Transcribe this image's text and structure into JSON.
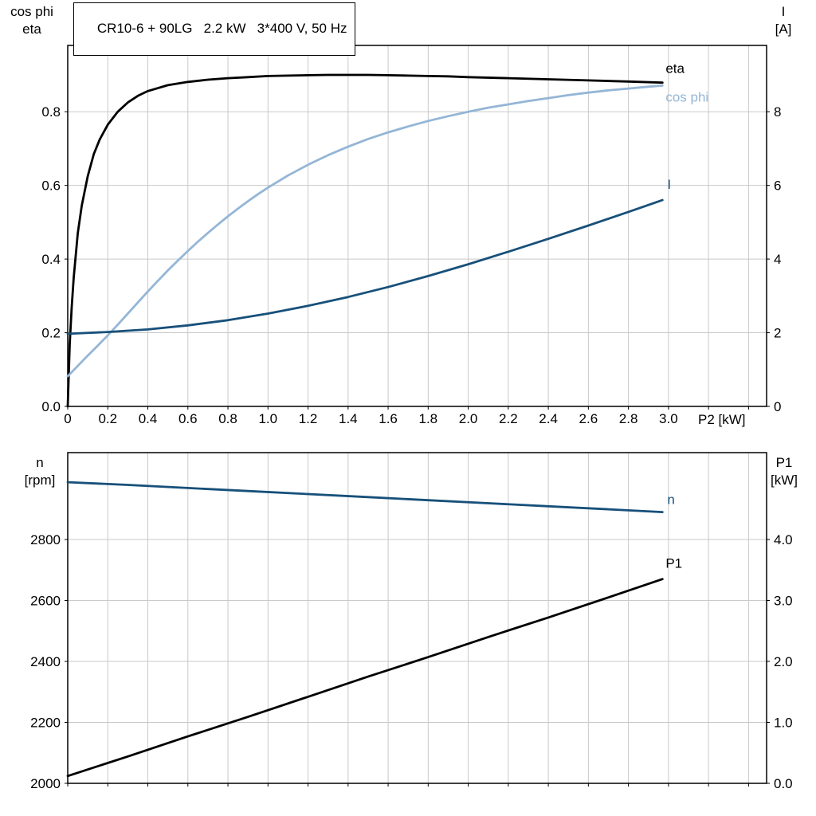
{
  "chart_title": "CR10-6 + 90LG   2.2 kW   3*400 V, 50 Hz",
  "colors": {
    "curve_black": "#000000",
    "curve_dark_blue": "#17507a",
    "curve_light_blue": "#94b6d6",
    "grid": "#c9c9c9",
    "frame": "#000000",
    "text": "#000000"
  },
  "axis_labels": {
    "top_left_line1": "cos phi",
    "top_left_line2": "eta",
    "top_right_line1": "I",
    "top_right_line2": "[A]",
    "x_label": "P2 [kW]",
    "bottom_left_line1": "n",
    "bottom_left_line2": "[rpm]",
    "bottom_right_line1": "P1",
    "bottom_right_line2": "[kW]"
  },
  "chart_data": [
    {
      "id": "motor-efficiency",
      "type": "line",
      "x_axis": {
        "label": "P2 [kW]",
        "min": 0,
        "max": 3.49,
        "grid_step": 0.2,
        "tick_step": 0.2
      },
      "x_tick_labels": [
        "0",
        "0.2",
        "0.4",
        "0.6",
        "0.8",
        "1.0",
        "1.2",
        "1.4",
        "1.6",
        "1.8",
        "2.0",
        "2.2",
        "2.4",
        "2.6",
        "2.8",
        "3.0"
      ],
      "y_left": {
        "title": "cos phi / eta",
        "min": 0,
        "max": 0.98,
        "ticks": [
          0,
          0.2,
          0.4,
          0.6,
          0.8
        ],
        "tick_labels": [
          "0.0",
          "0.2",
          "0.4",
          "0.6",
          "0.8"
        ]
      },
      "y_right": {
        "title": "I [A]",
        "min": 0,
        "max": 9.8,
        "ticks": [
          0,
          2,
          4,
          6,
          8
        ],
        "tick_labels": [
          "0",
          "2",
          "4",
          "6",
          "8"
        ]
      },
      "series": [
        {
          "name": "eta",
          "axis": "left",
          "color": "curve_black",
          "label_offset": [
            4,
            -12
          ],
          "points": [
            [
              0,
              0
            ],
            [
              0.01,
              0.17
            ],
            [
              0.02,
              0.27
            ],
            [
              0.03,
              0.35
            ],
            [
              0.05,
              0.47
            ],
            [
              0.07,
              0.545
            ],
            [
              0.1,
              0.625
            ],
            [
              0.13,
              0.685
            ],
            [
              0.16,
              0.725
            ],
            [
              0.2,
              0.765
            ],
            [
              0.25,
              0.8
            ],
            [
              0.3,
              0.825
            ],
            [
              0.35,
              0.843
            ],
            [
              0.4,
              0.856
            ],
            [
              0.5,
              0.872
            ],
            [
              0.6,
              0.881
            ],
            [
              0.7,
              0.887
            ],
            [
              0.8,
              0.891
            ],
            [
              0.9,
              0.894
            ],
            [
              1.0,
              0.897
            ],
            [
              1.1,
              0.898
            ],
            [
              1.2,
              0.899
            ],
            [
              1.3,
              0.9
            ],
            [
              1.4,
              0.9
            ],
            [
              1.5,
              0.9
            ],
            [
              1.6,
              0.899
            ],
            [
              1.7,
              0.898
            ],
            [
              1.8,
              0.897
            ],
            [
              1.9,
              0.896
            ],
            [
              2.0,
              0.894
            ],
            [
              2.2,
              0.891
            ],
            [
              2.4,
              0.888
            ],
            [
              2.6,
              0.885
            ],
            [
              2.8,
              0.882
            ],
            [
              2.97,
              0.879
            ]
          ]
        },
        {
          "name": "cos phi",
          "axis": "left",
          "color": "curve_light_blue",
          "label_offset": [
            4,
            20
          ],
          "points": [
            [
              0,
              0.082
            ],
            [
              0.05,
              0.11
            ],
            [
              0.1,
              0.138
            ],
            [
              0.15,
              0.165
            ],
            [
              0.2,
              0.193
            ],
            [
              0.25,
              0.222
            ],
            [
              0.3,
              0.252
            ],
            [
              0.35,
              0.282
            ],
            [
              0.4,
              0.312
            ],
            [
              0.45,
              0.341
            ],
            [
              0.5,
              0.369
            ],
            [
              0.55,
              0.396
            ],
            [
              0.6,
              0.422
            ],
            [
              0.65,
              0.447
            ],
            [
              0.7,
              0.471
            ],
            [
              0.75,
              0.494
            ],
            [
              0.8,
              0.516
            ],
            [
              0.85,
              0.537
            ],
            [
              0.9,
              0.557
            ],
            [
              0.95,
              0.576
            ],
            [
              1.0,
              0.594
            ],
            [
              1.1,
              0.627
            ],
            [
              1.2,
              0.656
            ],
            [
              1.3,
              0.682
            ],
            [
              1.4,
              0.705
            ],
            [
              1.5,
              0.726
            ],
            [
              1.6,
              0.744
            ],
            [
              1.7,
              0.76
            ],
            [
              1.8,
              0.775
            ],
            [
              1.9,
              0.788
            ],
            [
              2.0,
              0.8
            ],
            [
              2.1,
              0.811
            ],
            [
              2.2,
              0.82
            ],
            [
              2.3,
              0.829
            ],
            [
              2.4,
              0.837
            ],
            [
              2.5,
              0.845
            ],
            [
              2.6,
              0.852
            ],
            [
              2.7,
              0.858
            ],
            [
              2.8,
              0.863
            ],
            [
              2.9,
              0.868
            ],
            [
              2.97,
              0.871
            ]
          ]
        },
        {
          "name": "I",
          "axis": "right",
          "color": "curve_dark_blue",
          "label_offset": [
            6,
            -14
          ],
          "points": [
            [
              0,
              1.97
            ],
            [
              0.2,
              2.02
            ],
            [
              0.4,
              2.09
            ],
            [
              0.6,
              2.2
            ],
            [
              0.8,
              2.34
            ],
            [
              1.0,
              2.52
            ],
            [
              1.2,
              2.73
            ],
            [
              1.4,
              2.97
            ],
            [
              1.6,
              3.24
            ],
            [
              1.8,
              3.54
            ],
            [
              2.0,
              3.86
            ],
            [
              2.2,
              4.2
            ],
            [
              2.4,
              4.55
            ],
            [
              2.6,
              4.91
            ],
            [
              2.8,
              5.28
            ],
            [
              2.97,
              5.6
            ]
          ]
        }
      ]
    },
    {
      "id": "motor-speed-power",
      "type": "line",
      "x_axis": {
        "label": "",
        "min": 0,
        "max": 3.49,
        "grid_step": 0.2,
        "tick_step": 0.2
      },
      "x_tick_labels": [],
      "y_left": {
        "title": "n [rpm]",
        "min": 2000,
        "max": 3085,
        "ticks": [
          2000,
          2200,
          2400,
          2600,
          2800
        ],
        "tick_labels": [
          "2000",
          "2200",
          "2400",
          "2600",
          "2800"
        ]
      },
      "y_right": {
        "title": "P1 [kW]",
        "min": 0,
        "max": 5.425,
        "ticks": [
          0,
          1,
          2,
          3,
          4
        ],
        "tick_labels": [
          "0.0",
          "1.0",
          "2.0",
          "3.0",
          "4.0"
        ]
      },
      "series": [
        {
          "name": "n",
          "axis": "left",
          "color": "curve_dark_blue",
          "label_offset": [
            6,
            -10
          ],
          "points": [
            [
              0,
              2988
            ],
            [
              0.3,
              2979
            ],
            [
              0.6,
              2969
            ],
            [
              0.9,
              2959
            ],
            [
              1.2,
              2949
            ],
            [
              1.5,
              2939
            ],
            [
              1.8,
              2929
            ],
            [
              2.1,
              2919
            ],
            [
              2.4,
              2909
            ],
            [
              2.7,
              2899
            ],
            [
              2.97,
              2890
            ]
          ]
        },
        {
          "name": "P1",
          "axis": "left_ignore_right",
          "color": "curve_black",
          "label_offset": [
            4,
            -14
          ],
          "axis_real": "right",
          "points": [
            [
              0,
              0.12
            ],
            [
              0.3,
              0.44
            ],
            [
              0.6,
              0.77
            ],
            [
              0.9,
              1.09
            ],
            [
              1.2,
              1.42
            ],
            [
              1.5,
              1.75
            ],
            [
              1.8,
              2.07
            ],
            [
              2.1,
              2.4
            ],
            [
              2.4,
              2.72
            ],
            [
              2.7,
              3.05
            ],
            [
              2.97,
              3.35
            ]
          ]
        }
      ]
    }
  ]
}
